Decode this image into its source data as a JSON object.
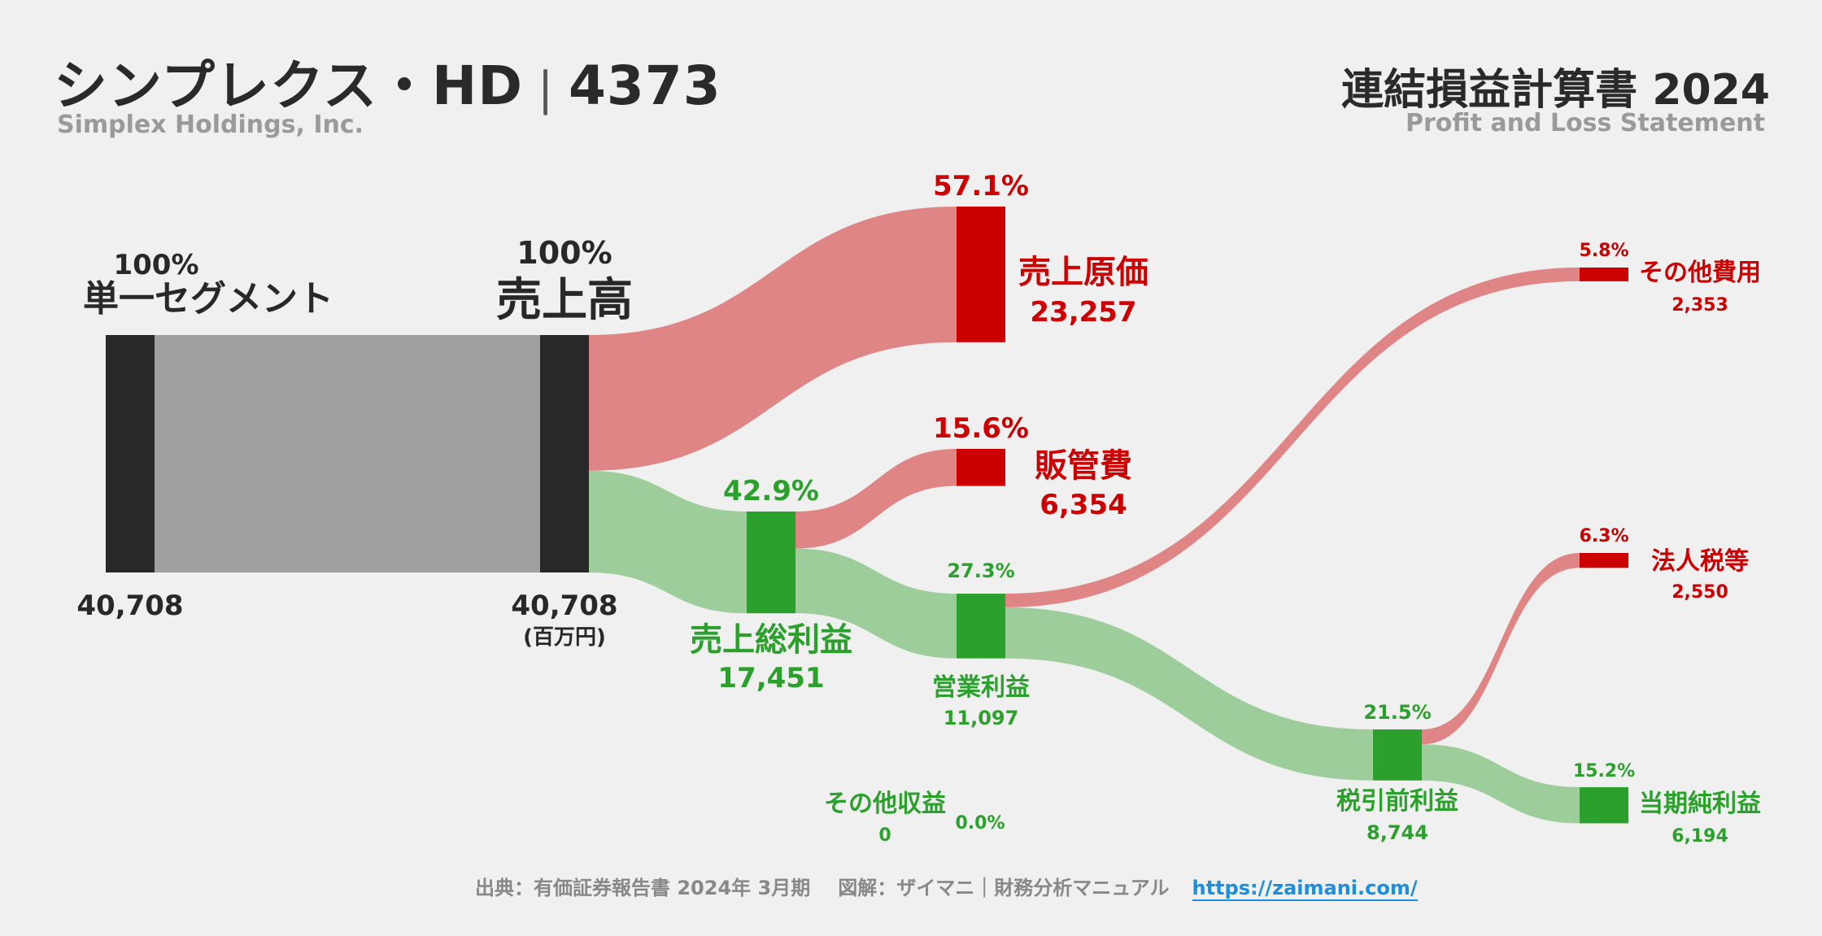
{
  "header": {
    "company": "シンプレクス・HD",
    "separator": "|",
    "code": "4373",
    "company_en": "Simplex Holdings, Inc.",
    "statement": "連結損益計算書 2024",
    "statement_en": "Profit and Loss Statement"
  },
  "footer": {
    "source": "出典：有価証券報告書 2024年 3月期",
    "credit": "図解：ザイマニ｜財務分析マニュアル",
    "url": "https://zaimani.com/"
  },
  "colors": {
    "cost_red": "#cc0000",
    "cost_flow": "#e08585",
    "profit_green": "#2ca02c",
    "profit_flow": "#9dcd9a",
    "revenue_bar": "#282828",
    "revenue_flow": "#a0a0a0",
    "text_dark": "#282828"
  },
  "chart_data": {
    "type": "sankey",
    "unit": "(百万円)",
    "nodes": [
      {
        "id": "segment",
        "label": "単一セグメント",
        "value": 40708,
        "value_label": "40,708",
        "pct": "100%"
      },
      {
        "id": "revenue",
        "label": "売上高",
        "value": 40708,
        "value_label": "40,708",
        "pct": "100%"
      },
      {
        "id": "cogs",
        "label": "売上原価",
        "value": 23257,
        "value_label": "23,257",
        "pct": "57.1%"
      },
      {
        "id": "gross",
        "label": "売上総利益",
        "value": 17451,
        "value_label": "17,451",
        "pct": "42.9%"
      },
      {
        "id": "sga",
        "label": "販管費",
        "value": 6354,
        "value_label": "6,354",
        "pct": "15.6%"
      },
      {
        "id": "operating",
        "label": "営業利益",
        "value": 11097,
        "value_label": "11,097",
        "pct": "27.3%"
      },
      {
        "id": "other_exp",
        "label": "その他費用",
        "value": 2353,
        "value_label": "2,353",
        "pct": "5.8%"
      },
      {
        "id": "other_inc",
        "label": "その他収益",
        "value": 0,
        "value_label": "0",
        "pct": "0.0%"
      },
      {
        "id": "pretax",
        "label": "税引前利益",
        "value": 8744,
        "value_label": "8,744",
        "pct": "21.5%"
      },
      {
        "id": "tax",
        "label": "法人税等",
        "value": 2550,
        "value_label": "2,550",
        "pct": "6.3%"
      },
      {
        "id": "net",
        "label": "当期純利益",
        "value": 6194,
        "value_label": "6,194",
        "pct": "15.2%"
      }
    ],
    "links": [
      {
        "source": "segment",
        "target": "revenue",
        "value": 40708
      },
      {
        "source": "revenue",
        "target": "cogs",
        "value": 23257
      },
      {
        "source": "revenue",
        "target": "gross",
        "value": 17451
      },
      {
        "source": "gross",
        "target": "sga",
        "value": 6354
      },
      {
        "source": "gross",
        "target": "operating",
        "value": 11097
      },
      {
        "source": "operating",
        "target": "other_exp",
        "value": 2353
      },
      {
        "source": "operating",
        "target": "pretax",
        "value": 8744
      },
      {
        "source": "pretax",
        "target": "tax",
        "value": 2550
      },
      {
        "source": "pretax",
        "target": "net",
        "value": 6194
      }
    ]
  }
}
